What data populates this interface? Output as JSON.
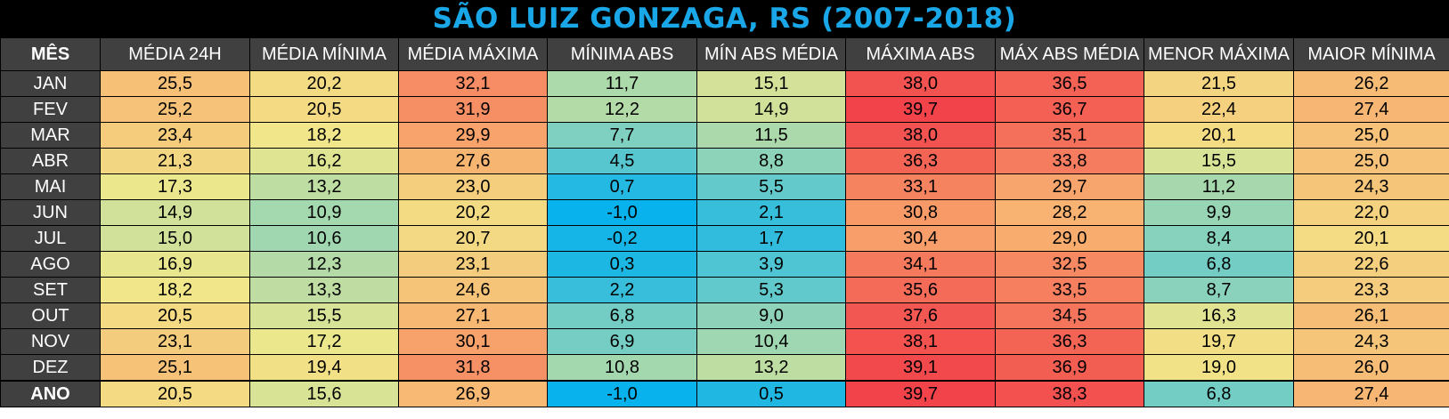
{
  "title": "SÃO LUIZ GONZAGA, RS (2007-2018)",
  "columns": [
    "MÊS",
    "MÉDIA 24H",
    "MÉDIA MÍNIMA",
    "MÉDIA MÁXIMA",
    "MÍNIMA ABS",
    "MÍN ABS MÉDIA",
    "MÁXIMA ABS",
    "MÁX ABS MÉDIA",
    "MENOR MÁXIMA",
    "MAIOR MÍNIMA"
  ],
  "rows": [
    {
      "month": "JAN",
      "values": [
        "25,5",
        "20,2",
        "32,1",
        "11,7",
        "15,1",
        "38,0",
        "36,5",
        "21,5",
        "26,2"
      ]
    },
    {
      "month": "FEV",
      "values": [
        "25,2",
        "20,5",
        "31,9",
        "12,2",
        "14,9",
        "39,7",
        "36,7",
        "22,4",
        "27,4"
      ]
    },
    {
      "month": "MAR",
      "values": [
        "23,4",
        "18,2",
        "29,9",
        "7,7",
        "11,5",
        "38,0",
        "35,1",
        "20,1",
        "25,0"
      ]
    },
    {
      "month": "ABR",
      "values": [
        "21,3",
        "16,2",
        "27,6",
        "4,5",
        "8,8",
        "36,3",
        "33,8",
        "15,5",
        "25,0"
      ]
    },
    {
      "month": "MAI",
      "values": [
        "17,3",
        "13,2",
        "23,0",
        "0,7",
        "5,5",
        "33,1",
        "29,7",
        "11,2",
        "24,3"
      ]
    },
    {
      "month": "JUN",
      "values": [
        "14,9",
        "10,9",
        "20,2",
        "-1,0",
        "2,1",
        "30,8",
        "28,2",
        "9,9",
        "22,0"
      ]
    },
    {
      "month": "JUL",
      "values": [
        "15,0",
        "10,6",
        "20,7",
        "-0,2",
        "1,7",
        "30,4",
        "29,0",
        "8,4",
        "20,1"
      ]
    },
    {
      "month": "AGO",
      "values": [
        "16,9",
        "12,3",
        "23,1",
        "0,3",
        "3,9",
        "34,1",
        "32,5",
        "6,8",
        "22,6"
      ]
    },
    {
      "month": "SET",
      "values": [
        "18,2",
        "13,3",
        "24,6",
        "2,2",
        "5,3",
        "35,6",
        "33,5",
        "8,7",
        "23,3"
      ]
    },
    {
      "month": "OUT",
      "values": [
        "20,5",
        "15,5",
        "27,1",
        "6,8",
        "9,0",
        "37,6",
        "34,5",
        "16,3",
        "26,1"
      ]
    },
    {
      "month": "NOV",
      "values": [
        "23,1",
        "17,2",
        "30,1",
        "6,9",
        "10,4",
        "38,1",
        "36,3",
        "19,7",
        "24,3"
      ]
    },
    {
      "month": "DEZ",
      "values": [
        "25,1",
        "19,4",
        "31,8",
        "10,8",
        "13,2",
        "39,1",
        "36,9",
        "19,0",
        "26,0"
      ]
    }
  ],
  "annual": {
    "month": "ANO",
    "values": [
      "20,5",
      "15,6",
      "26,9",
      "-1,0",
      "0,5",
      "39,7",
      "38,3",
      "6,8",
      "27,4"
    ]
  },
  "colors": {
    "title_text": "#1aa7e8",
    "header_bg": "#404040",
    "scale_cold": "#08b2ec",
    "scale_cool": "#7fd0c0",
    "scale_mild": "#f1e88a",
    "scale_warm": "#f8b070",
    "scale_hot": "#f2434a"
  }
}
